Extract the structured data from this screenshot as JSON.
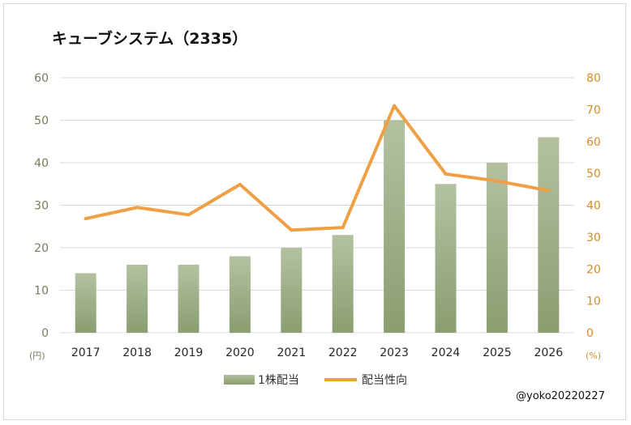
{
  "chart_data": {
    "type": "bar+line",
    "title": "キューブシステム（2335）",
    "categories": [
      "2017",
      "2018",
      "2019",
      "2020",
      "2021",
      "2022",
      "2023",
      "2024",
      "2025",
      "2026"
    ],
    "series": [
      {
        "name": "1株配当",
        "type": "bar",
        "axis": "left",
        "values": [
          14,
          16,
          16,
          18,
          20,
          23,
          50,
          35,
          40,
          46
        ]
      },
      {
        "name": "配当性向",
        "type": "line",
        "axis": "right",
        "values": [
          35.8,
          39.3,
          37.0,
          46.5,
          32.2,
          33.0,
          71.2,
          49.8,
          47.6,
          44.6
        ]
      }
    ],
    "y_left": {
      "unit": "(円)",
      "min": 0,
      "max": 60,
      "ticks": [
        0,
        10,
        20,
        30,
        40,
        50,
        60
      ]
    },
    "y_right": {
      "unit": "(%)",
      "min": 0,
      "max": 80,
      "ticks": [
        0,
        10,
        20,
        30,
        40,
        50,
        60,
        70,
        80
      ]
    },
    "grid": true,
    "legend_position": "bottom",
    "credit": "@yoko20220227",
    "colors": {
      "bar_top": "#b3c1a1",
      "bar_bottom": "#8a9e70",
      "line": "#f0a044",
      "left_axis": "#6f7f5a",
      "right_axis": "#d98b28"
    }
  }
}
